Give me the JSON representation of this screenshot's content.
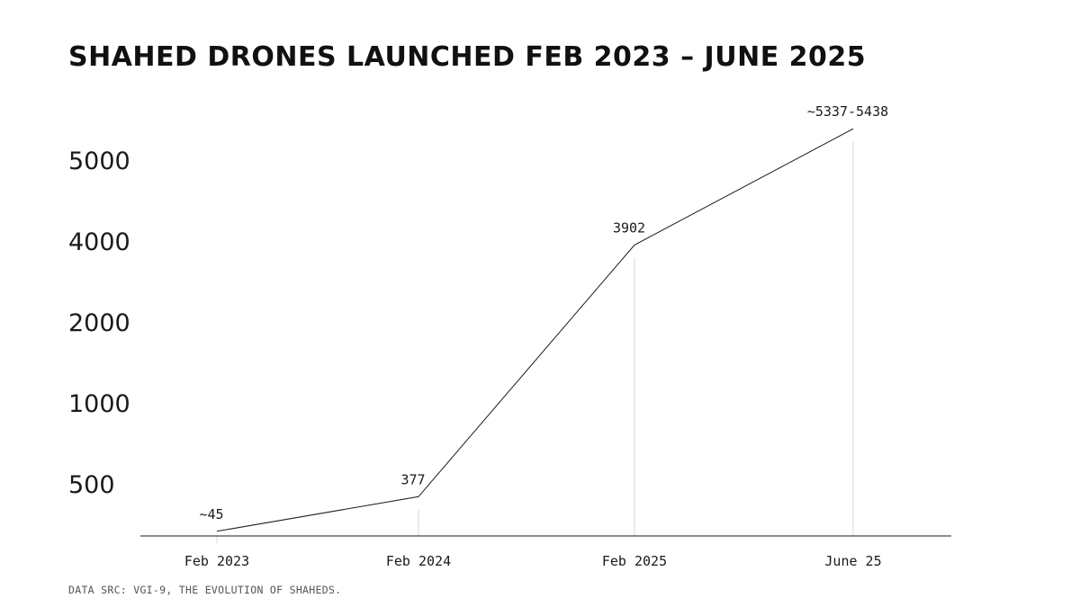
{
  "title": "SHAHED DRONES LAUNCHED FEB 2023 – JUNE 2025",
  "source": "DATA SRC: VGI-9, THE EVOLUTION OF SHAHEDS.",
  "colors": {
    "line": "#1a1a1a",
    "dropline": "#d9d9d9",
    "axis": "#1a1a1a",
    "text": "#1a1a1a"
  },
  "chart_data": {
    "type": "line",
    "title": "SHAHED DRONES LAUNCHED FEB 2023 – JUNE 2025",
    "xlabel": "",
    "ylabel": "",
    "categories": [
      "Feb 2023",
      "Feb 2024",
      "Feb 2025",
      "June 25"
    ],
    "y_axis_scale": "categorical (ticks evenly spaced)",
    "y_ticks": [
      "500",
      "1000",
      "2000",
      "4000",
      "5000"
    ],
    "series": [
      {
        "values": [
          45,
          377,
          3902,
          5387
        ],
        "labels": [
          "~45",
          "377",
          "3902",
          "~5337-5438"
        ]
      }
    ],
    "grid": false,
    "legend": "none"
  }
}
